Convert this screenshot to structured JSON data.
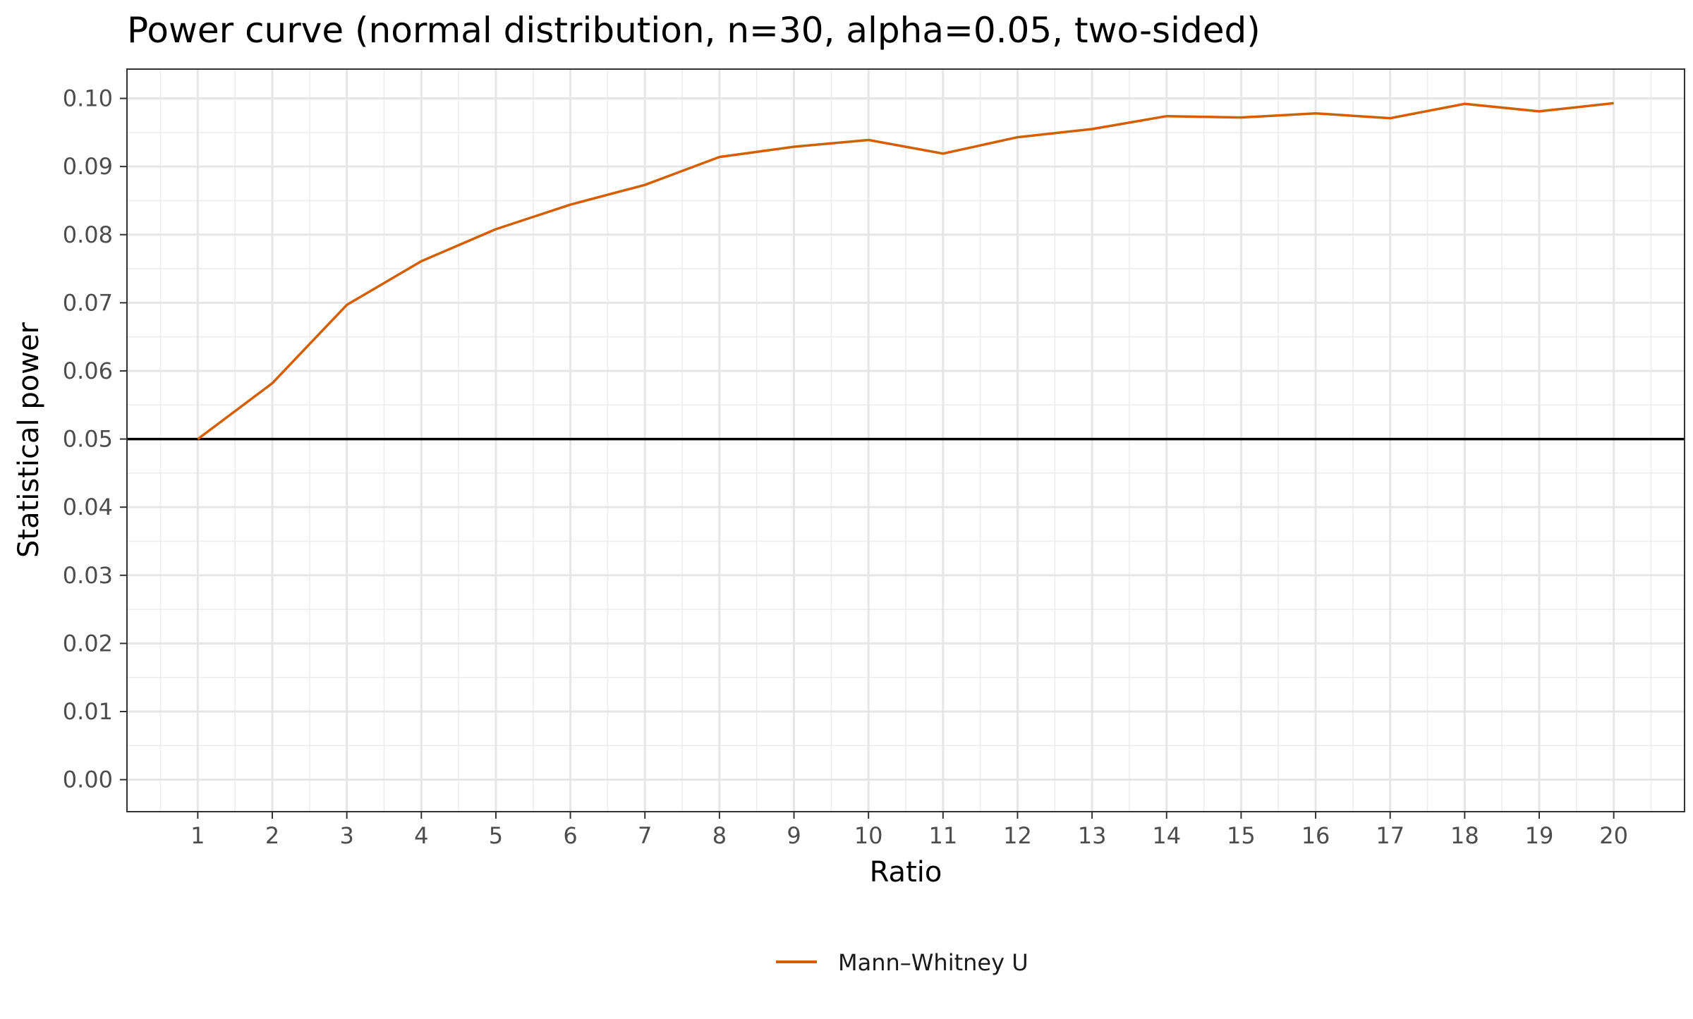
{
  "chart_data": {
    "type": "line",
    "title": "Power curve (normal distribution, n=30, alpha=0.05, two-sided)",
    "xlabel": "Ratio",
    "ylabel": "Statistical power",
    "x_ticks": [
      "1",
      "2",
      "3",
      "4",
      "5",
      "6",
      "7",
      "8",
      "9",
      "10",
      "11",
      "12",
      "13",
      "14",
      "15",
      "16",
      "17",
      "18",
      "19",
      "20"
    ],
    "y_ticks": [
      "0.00",
      "0.01",
      "0.02",
      "0.03",
      "0.04",
      "0.05",
      "0.06",
      "0.07",
      "0.08",
      "0.09",
      "0.10"
    ],
    "xlim": [
      0.05,
      20.95
    ],
    "ylim": [
      -0.0047,
      0.1043
    ],
    "grid": true,
    "legend_position": "bottom",
    "reference_line": {
      "y": 0.05,
      "color": "#000000"
    },
    "series": [
      {
        "name": "Mann–Whitney U",
        "color": "#D55E00",
        "x": [
          1,
          2,
          3,
          4,
          5,
          6,
          7,
          8,
          9,
          10,
          11,
          12,
          13,
          14,
          15,
          16,
          17,
          18,
          19,
          20
        ],
        "y": [
          0.05,
          0.0582,
          0.0697,
          0.0761,
          0.0808,
          0.0844,
          0.0873,
          0.0914,
          0.0929,
          0.0939,
          0.0919,
          0.0943,
          0.0955,
          0.0974,
          0.0972,
          0.0978,
          0.0971,
          0.0992,
          0.0981,
          0.0993
        ]
      }
    ]
  }
}
